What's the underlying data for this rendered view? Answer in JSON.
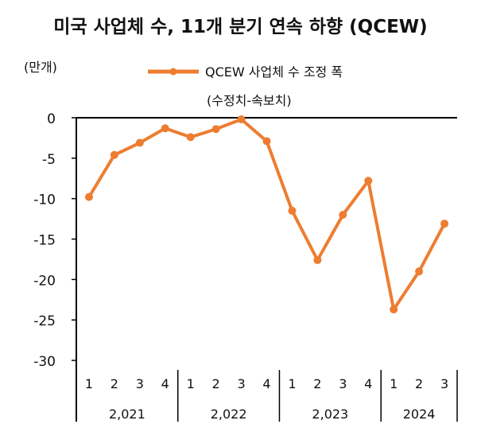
{
  "chart_data": {
    "type": "line",
    "title": "미국 사업체 수, 11개 분기 연속 하향 (QCEW)",
    "unit_label": "(만개)",
    "legend": {
      "label": "QCEW 사업체 수 조정 폭",
      "sublabel": "(수정치-속보치)",
      "placement": "top-center"
    },
    "categories": [
      "1",
      "2",
      "3",
      "4",
      "1",
      "2",
      "3",
      "4",
      "1",
      "2",
      "3",
      "4",
      "1",
      "2",
      "3"
    ],
    "groups": [
      {
        "label": "2,021",
        "count": 4
      },
      {
        "label": "2,022",
        "count": 4
      },
      {
        "label": "2,023",
        "count": 4
      },
      {
        "label": "2024",
        "count": 3
      }
    ],
    "series": [
      {
        "name": "QCEW 사업체 수 조정 폭",
        "color": "#ED7D31",
        "values": [
          -9.8,
          -4.6,
          -3.1,
          -1.3,
          -2.4,
          -1.4,
          -0.2,
          -2.9,
          -11.5,
          -17.6,
          -12.0,
          -7.8,
          -23.7,
          -19.0,
          -13.1
        ]
      }
    ],
    "ylim": [
      -30,
      0
    ],
    "yticks": [
      0,
      -5,
      -10,
      -15,
      -20,
      -25,
      -30
    ],
    "grid": false
  }
}
